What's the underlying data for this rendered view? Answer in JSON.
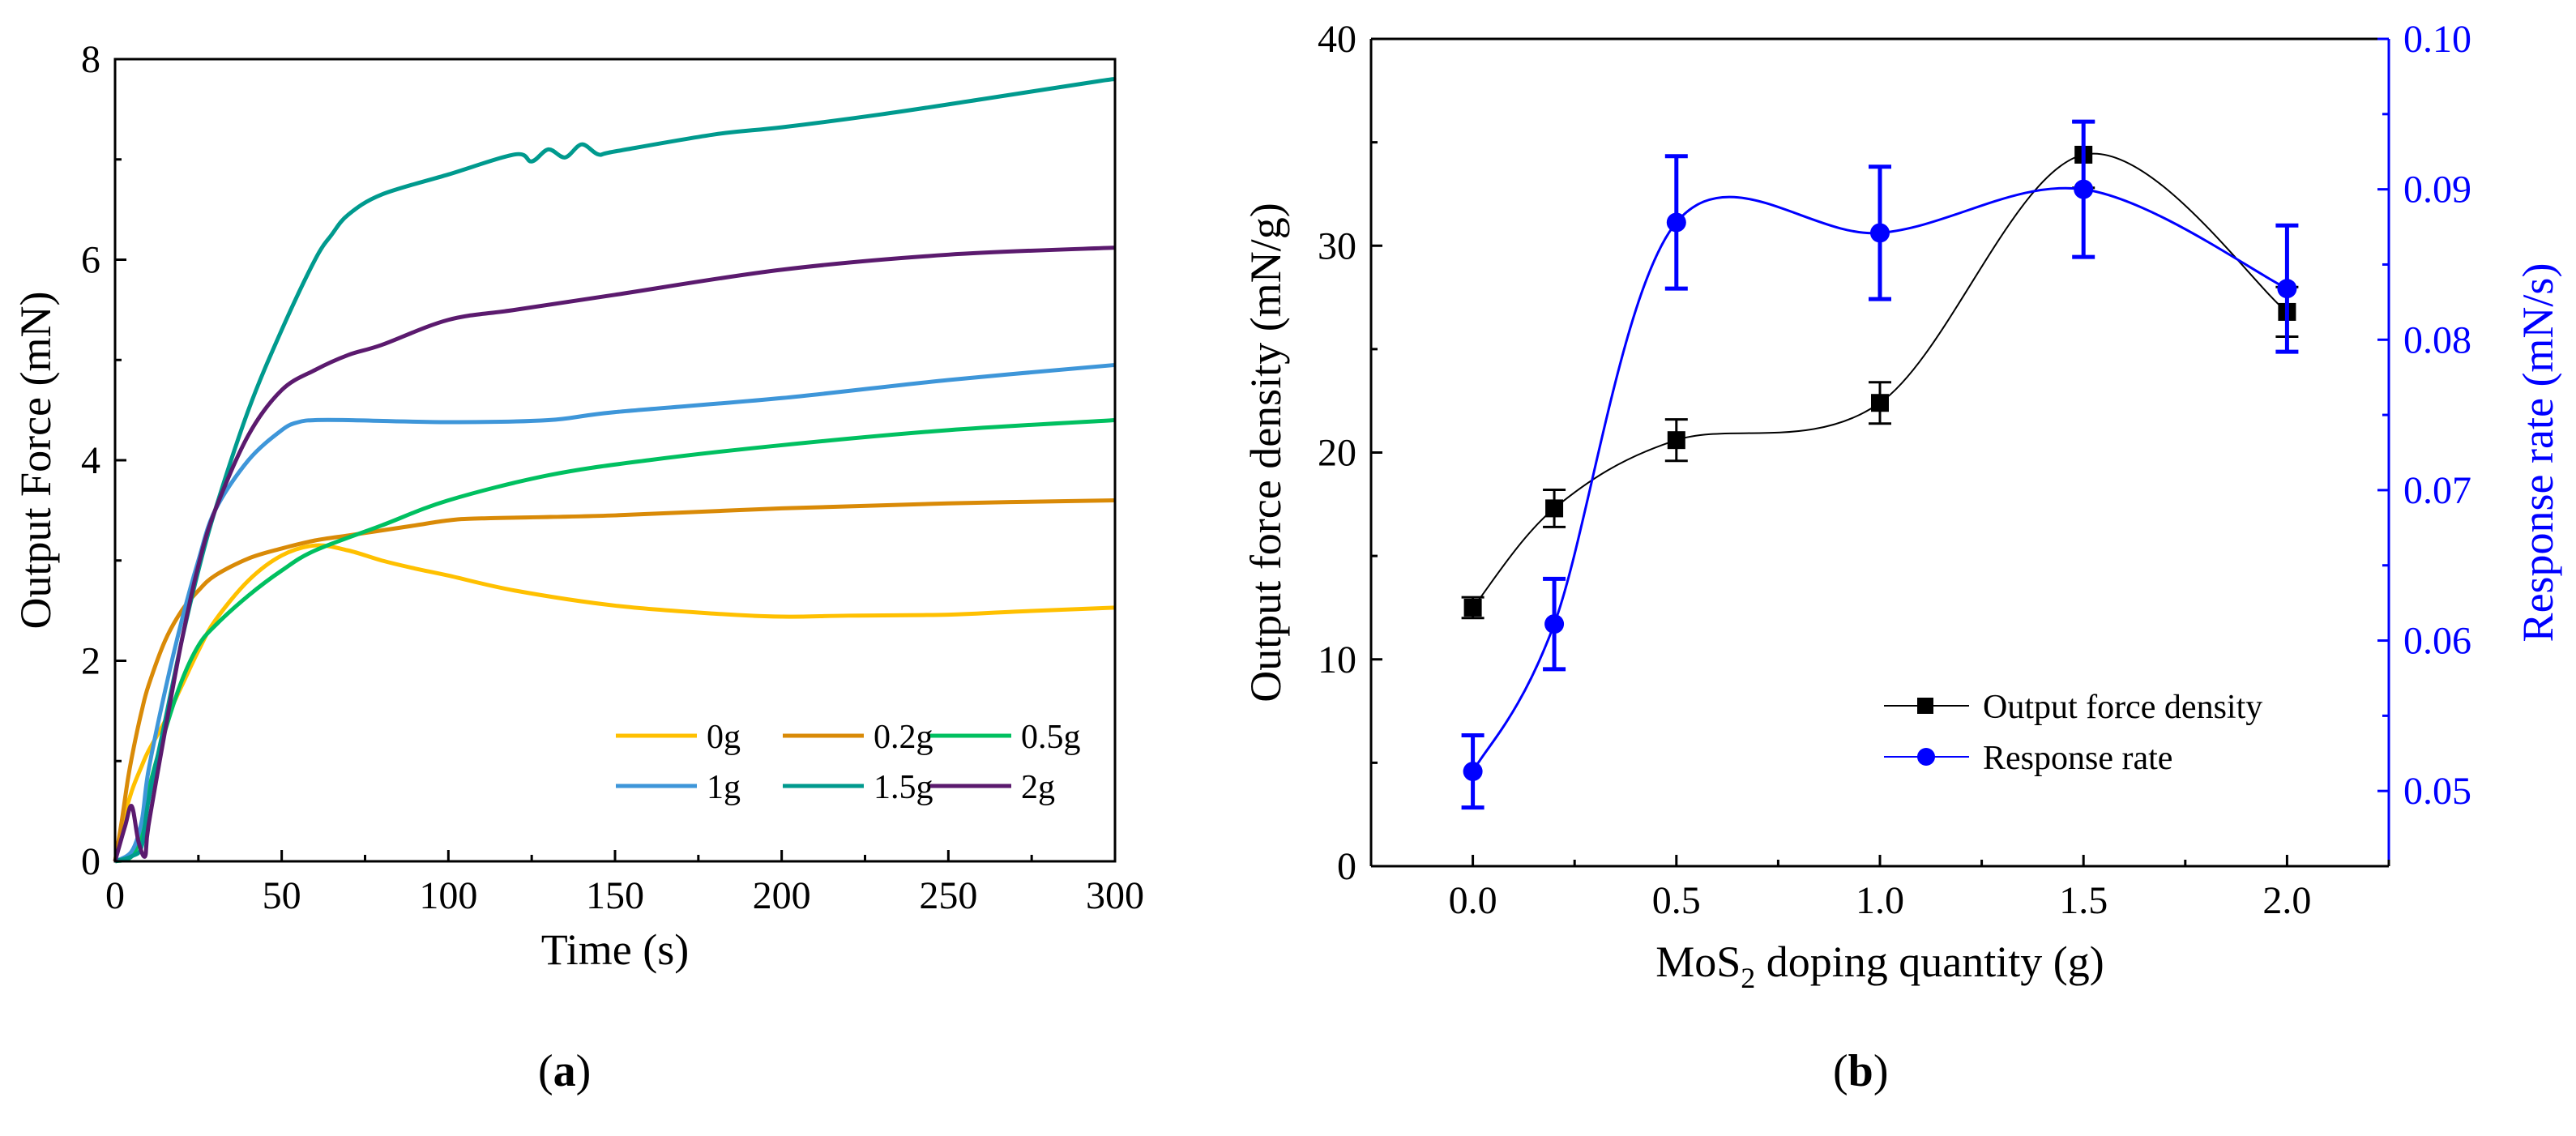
{
  "panels": [
    {
      "label": "a",
      "chart_data": {
        "type": "line",
        "title": "",
        "xlabel": "Time (s)",
        "ylabel": "Output Force (mN)",
        "xlim": [
          0,
          300
        ],
        "ylim": [
          0,
          8
        ],
        "xticks": [
          0,
          50,
          100,
          150,
          200,
          250,
          300
        ],
        "yticks": [
          0,
          2,
          4,
          6,
          8
        ],
        "legend_position": "bottom-right",
        "series": [
          {
            "name": "0g",
            "color": "#FFC000",
            "x": [
              0,
              2,
              5,
              8,
              10,
              15,
              20,
              25,
              30,
              40,
              50,
              60,
              70,
              80,
              90,
              100,
              120,
              150,
              180,
              200,
              220,
              250,
              270,
              300
            ],
            "y": [
              0,
              0.35,
              0.7,
              0.95,
              1.1,
              1.4,
              1.75,
              2.1,
              2.4,
              2.8,
              3.05,
              3.15,
              3.1,
              3.0,
              2.92,
              2.85,
              2.7,
              2.55,
              2.47,
              2.44,
              2.45,
              2.46,
              2.49,
              2.53
            ]
          },
          {
            "name": "0.2g",
            "color": "#D98A07",
            "x": [
              0,
              2,
              4,
              6,
              8,
              10,
              15,
              20,
              25,
              30,
              40,
              50,
              60,
              70,
              80,
              90,
              100,
              110,
              150,
              200,
              250,
              300
            ],
            "y": [
              0,
              0.4,
              0.85,
              1.2,
              1.5,
              1.75,
              2.2,
              2.5,
              2.7,
              2.85,
              3.02,
              3.12,
              3.2,
              3.25,
              3.3,
              3.35,
              3.4,
              3.42,
              3.45,
              3.52,
              3.57,
              3.6
            ]
          },
          {
            "name": "0.5g",
            "color": "#00C060",
            "x": [
              0,
              5,
              8,
              10,
              15,
              20,
              25,
              30,
              40,
              50,
              60,
              80,
              100,
              130,
              160,
              200,
              250,
              300
            ],
            "y": [
              0,
              0.05,
              0.3,
              0.7,
              1.3,
              1.8,
              2.15,
              2.35,
              2.65,
              2.9,
              3.1,
              3.35,
              3.6,
              3.85,
              4.0,
              4.15,
              4.3,
              4.4
            ]
          },
          {
            "name": "1g",
            "color": "#3E96D9",
            "x": [
              0,
              5,
              8,
              10,
              15,
              20,
              25,
              30,
              40,
              50,
              55,
              60,
              70,
              100,
              130,
              150,
              200,
              250,
              300
            ],
            "y": [
              0,
              0.1,
              0.4,
              0.9,
              1.7,
              2.4,
              3.0,
              3.5,
              4.0,
              4.3,
              4.38,
              4.4,
              4.4,
              4.38,
              4.4,
              4.48,
              4.62,
              4.8,
              4.95
            ]
          },
          {
            "name": "1.5g",
            "color": "#009A8E",
            "x": [
              0,
              5,
              8,
              10,
              15,
              20,
              25,
              30,
              40,
              50,
              60,
              65,
              70,
              80,
              100,
              120,
              125,
              130,
              135,
              140,
              145,
              150,
              180,
              200,
              230,
              260,
              295,
              300
            ],
            "y": [
              0,
              0.05,
              0.15,
              0.6,
              1.4,
              2.2,
              2.9,
              3.5,
              4.5,
              5.3,
              6.0,
              6.25,
              6.45,
              6.65,
              6.85,
              7.05,
              6.98,
              7.1,
              7.02,
              7.15,
              7.05,
              7.08,
              7.25,
              7.32,
              7.45,
              7.6,
              7.78,
              7.8
            ]
          },
          {
            "name": "2g",
            "color": "#5B1A6E",
            "x": [
              0,
              3,
              5,
              7,
              9,
              10,
              15,
              20,
              25,
              30,
              40,
              50,
              60,
              70,
              80,
              100,
              120,
              150,
              200,
              250,
              300
            ],
            "y": [
              0,
              0.35,
              0.55,
              0.2,
              0.05,
              0.35,
              1.3,
              2.2,
              2.95,
              3.5,
              4.25,
              4.7,
              4.9,
              5.05,
              5.15,
              5.4,
              5.5,
              5.65,
              5.9,
              6.05,
              6.12
            ]
          }
        ]
      }
    },
    {
      "label": "b",
      "chart_data": {
        "type": "scatter",
        "title": "",
        "xlabel_main": "MoS",
        "xlabel_sub": "2",
        "xlabel_rest": " doping  quantity (g)",
        "ylabel": "Output force density (mN/g)",
        "y2label": "Response rate (mN/s)",
        "xlim": [
          -0.25,
          2.25
        ],
        "ylim": [
          0,
          40
        ],
        "y2lim": [
          0.045,
          0.1
        ],
        "xticks": [
          "0.0",
          "0.5",
          "1.0",
          "1.5",
          "2.0"
        ],
        "yticks": [
          "0",
          "10",
          "20",
          "30",
          "40"
        ],
        "y2ticks": [
          "0.05",
          "0.06",
          "0.07",
          "0.08",
          "0.09",
          "0.10"
        ],
        "legend_position": "bottom-right",
        "series": [
          {
            "name": "Output force density",
            "axis": "left",
            "marker": "square",
            "color": "#000000",
            "x": [
              0.0,
              0.2,
              0.5,
              1.0,
              1.5,
              2.0
            ],
            "y": [
              12.5,
              17.3,
              20.6,
              22.4,
              34.4,
              26.8
            ],
            "err": [
              0.5,
              0.9,
              1.0,
              1.0,
              1.6,
              1.2
            ]
          },
          {
            "name": "Response rate",
            "axis": "right",
            "marker": "circle",
            "color": "#0000FF",
            "x": [
              0.0,
              0.2,
              0.5,
              1.0,
              1.5,
              2.0
            ],
            "y": [
              0.0513,
              0.0611,
              0.0878,
              0.0871,
              0.09,
              0.0834
            ],
            "err": [
              0.0024,
              0.003,
              0.0044,
              0.0044,
              0.0045,
              0.0042
            ]
          }
        ]
      }
    }
  ]
}
